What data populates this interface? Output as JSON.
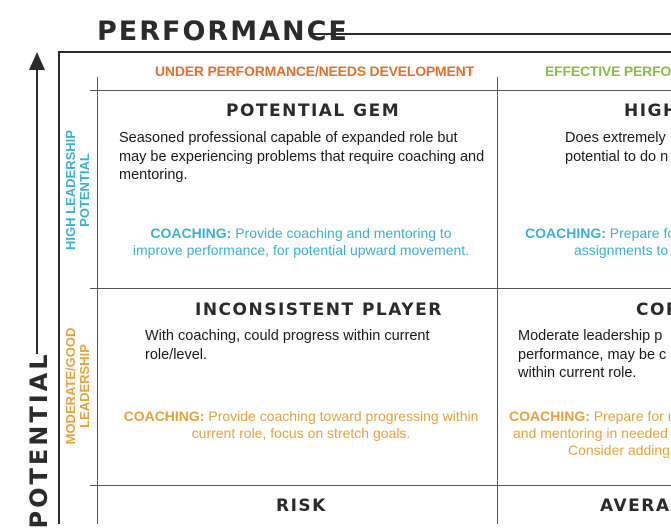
{
  "header": {
    "title": "PERFORMANCE"
  },
  "axis": {
    "label": "POTENTIAL"
  },
  "columns": [
    {
      "label": "UNDER PERFORMANCE/NEEDS DEVELOPMENT",
      "color": "#e8702a"
    },
    {
      "label": "EFFECTIVE PERFORM",
      "color": "#8cbf3f"
    }
  ],
  "rows": [
    {
      "label_line1": "HIGH LEADERSHIP",
      "label_line2": "POTENTIAL",
      "color": "#3ab1d6"
    },
    {
      "label_line1": "MODERATE/GOOD",
      "label_line2": "LEADERSHIP",
      "color": "#e9a23b"
    }
  ],
  "cells": {
    "potential_gem": {
      "title": "POTENTIAL GEM",
      "description": "Seasoned professional capable of expanded role but may be experiencing problems that require coaching and mentoring.",
      "coaching_label": "COACHING:",
      "coaching_text": "Provide coaching and mentoring to improve performance, for potential upward movement."
    },
    "high": {
      "title": "HIGH",
      "description_line1": "Does extremely",
      "description_line2": "potential to do n",
      "coaching_label": "COACHING:",
      "coaching_line1": "Prepare for u",
      "coaching_line2": "assignments to h"
    },
    "inconsistent_player": {
      "title": "INCONSISTENT PLAYER",
      "description": "With coaching, could progress within current role/level.",
      "coaching_label": "COACHING:",
      "coaching_text": "Provide coaching toward progressing within current role, focus on stretch goals."
    },
    "core": {
      "title": "COR",
      "description_line1": "Moderate leadership p",
      "description_line2": "performance, may be c",
      "description_line3": "within current role.",
      "coaching_label": "COACHING:",
      "coaching_line1": "Prepare for upw",
      "coaching_line2": "and mentoring in needed a",
      "coaching_line3": "Consider adding a"
    },
    "risk": {
      "title": "RISK"
    },
    "average": {
      "title": "AVERAG"
    }
  }
}
